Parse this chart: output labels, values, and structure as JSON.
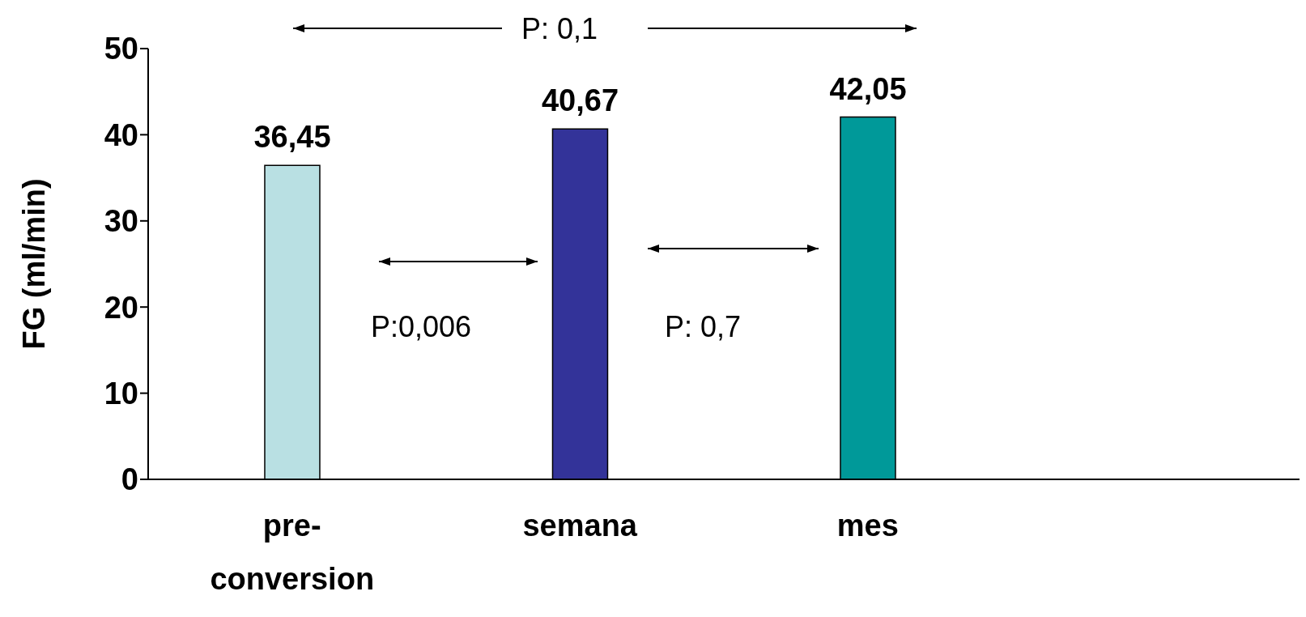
{
  "chart_data": {
    "type": "bar",
    "ylabel": "FG (ml/min)",
    "categories": [
      "pre-conversion",
      "semana",
      "mes",
      null
    ],
    "values": [
      36.45,
      40.67,
      42.05,
      null
    ],
    "value_labels": [
      "36,45",
      "40,67",
      "42,05",
      null
    ],
    "colors": [
      "#b9e0e3",
      "#333399",
      "#009999",
      "#ffffff"
    ],
    "ylim": [
      0,
      50
    ],
    "yticks": [
      0,
      10,
      20,
      30,
      40,
      50
    ],
    "grid": false,
    "legend": false,
    "annotations": [
      "P: 0,1",
      "P:0,006",
      "P: 0,7"
    ]
  }
}
